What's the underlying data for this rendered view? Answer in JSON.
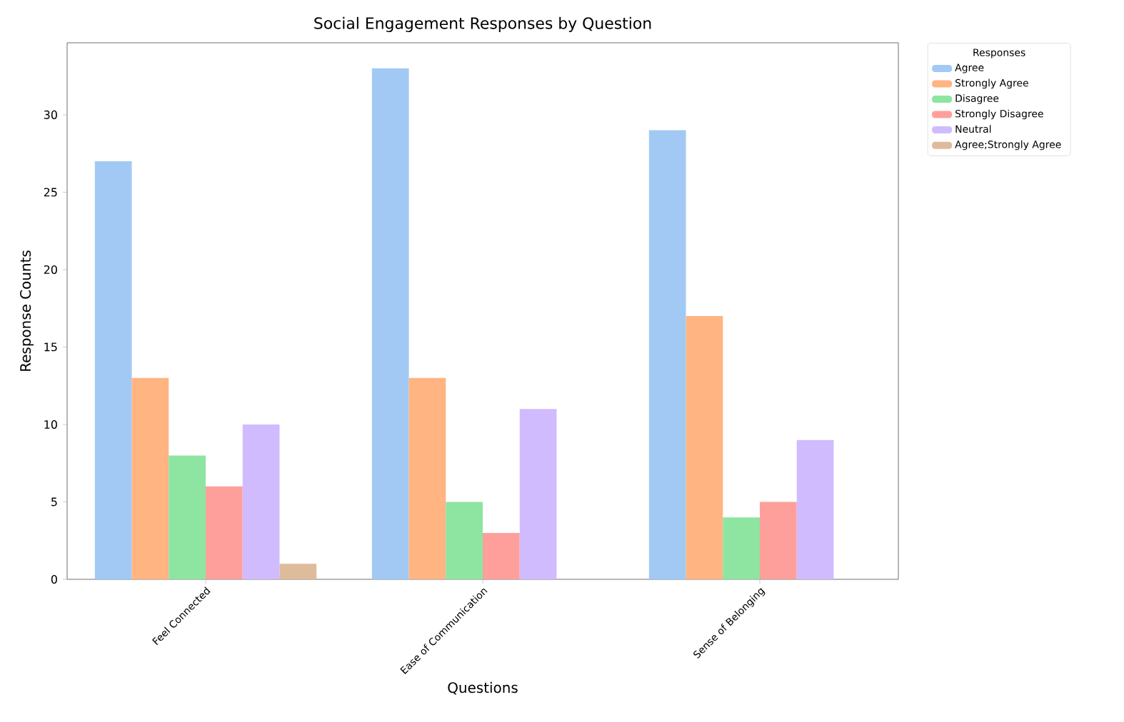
{
  "chart_data": {
    "type": "bar",
    "title": "Social Engagement Responses by Question",
    "xlabel": "Questions",
    "ylabel": "Response Counts",
    "legend_title": "Responses",
    "categories": [
      "Feel Connected",
      "Ease of Communication",
      "Sense of Belonging"
    ],
    "series": [
      {
        "name": "Agree",
        "color": "#a1c9f4",
        "values": [
          27,
          33,
          29
        ]
      },
      {
        "name": "Strongly Agree",
        "color": "#ffb482",
        "values": [
          13,
          13,
          17
        ]
      },
      {
        "name": "Disagree",
        "color": "#8de5a1",
        "values": [
          8,
          5,
          4
        ]
      },
      {
        "name": "Strongly Disagree",
        "color": "#ff9f9b",
        "values": [
          6,
          3,
          5
        ]
      },
      {
        "name": "Neutral",
        "color": "#d0bbff",
        "values": [
          10,
          11,
          9
        ]
      },
      {
        "name": "Agree;Strongly Agree",
        "color": "#debb9b",
        "values": [
          1,
          null,
          null
        ]
      }
    ],
    "ylim": [
      0,
      34.65
    ],
    "yticks": [
      0,
      5,
      10,
      15,
      20,
      25,
      30
    ],
    "grid": false,
    "legend": "top right"
  }
}
